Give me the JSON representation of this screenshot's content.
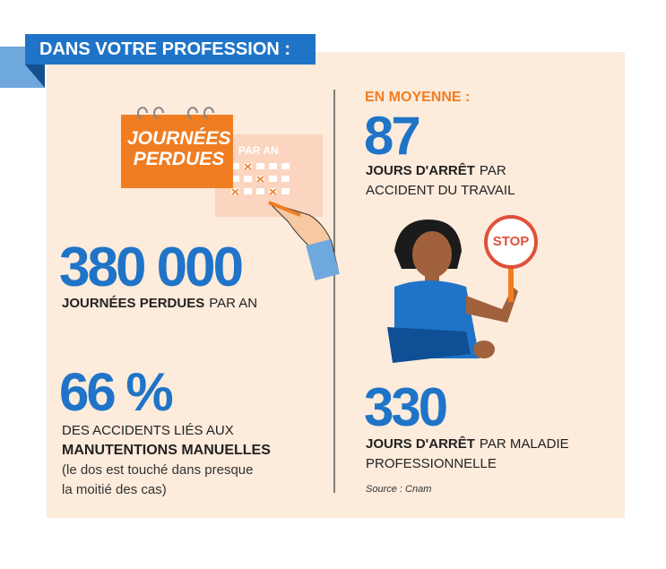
{
  "header": {
    "title": "DANS VOTRE PROFESSION :"
  },
  "illustration": {
    "calendar_title": "JOURNÉES PERDUES",
    "calendar_subtitle": "PAR AN",
    "sign": "STOP"
  },
  "left": {
    "stat1": {
      "number": "380 000",
      "label_bold": "JOURNÉES PERDUES",
      "label": "PAR AN"
    },
    "stat2": {
      "number": "66 %",
      "line1": "DES ACCIDENTS LIÉS AUX",
      "line2_bold": "MANUTENTIONS MANUELLES",
      "note_line1": "(le dos est touché dans presque",
      "note_line2": "la moitié des cas)"
    }
  },
  "right": {
    "intro": "EN MOYENNE :",
    "stat1": {
      "number": "87",
      "label_bold": "JOURS D'ARRÊT",
      "label": "PAR",
      "label_line2": "ACCIDENT DU TRAVAIL"
    },
    "stat2": {
      "number": "330",
      "label_bold": "JOURS D'ARRÊT",
      "label": "PAR MALADIE",
      "label_line2": "PROFESSIONNELLE"
    }
  },
  "source": "Source : Cnam"
}
